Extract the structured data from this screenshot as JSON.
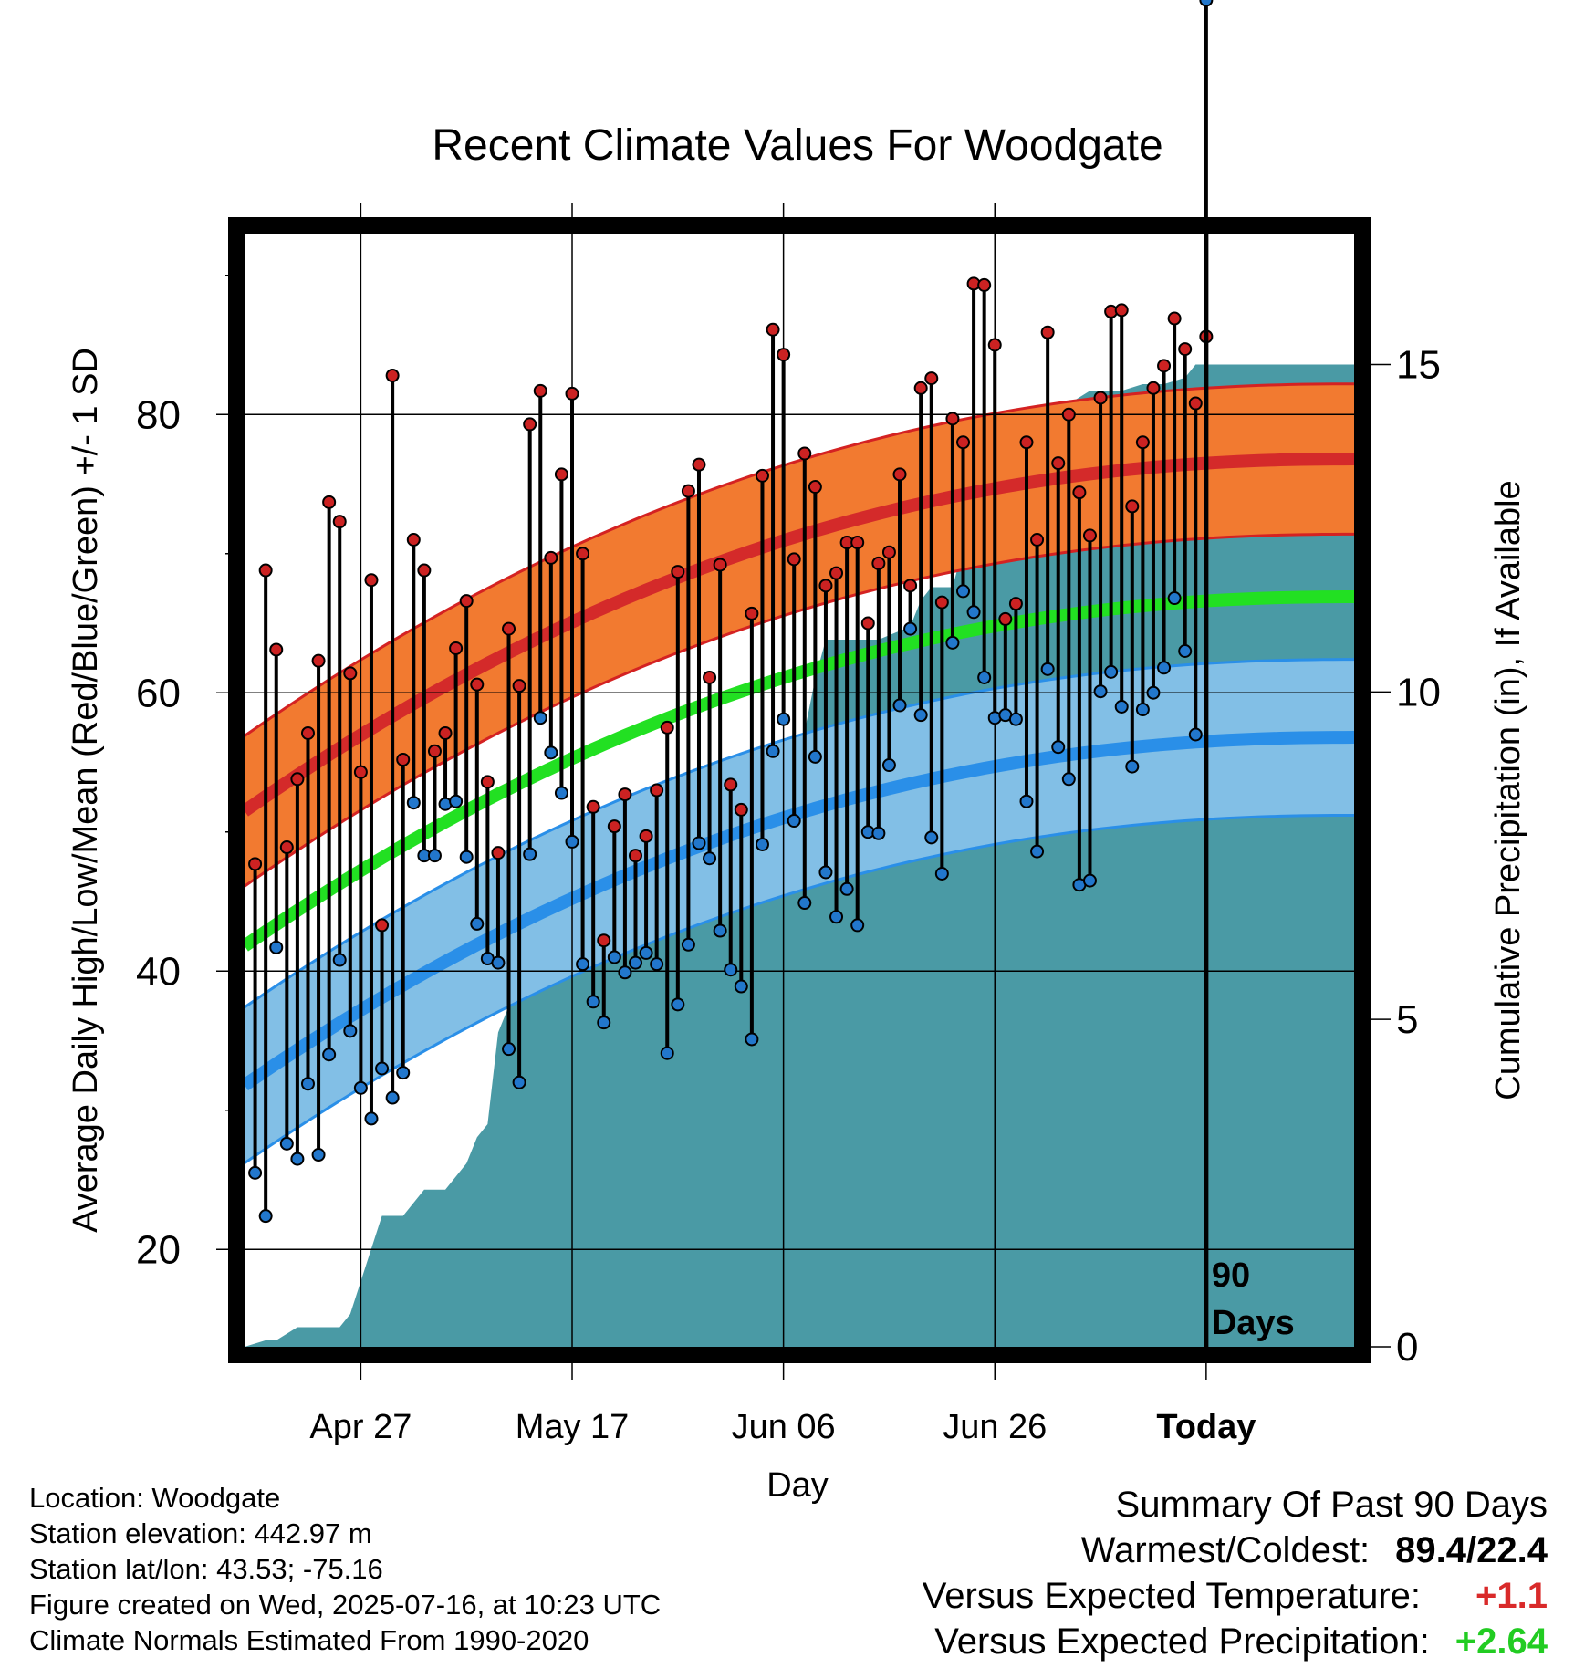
{
  "chart_data": {
    "type": "line",
    "title": "Recent Climate Values For Woodgate",
    "xlabel": "Day",
    "ylabel_left": "Average Daily High/Low/Mean (Red/Blue/Green) +/- 1 SD",
    "ylabel_right": "Cumulative Precipitation (in), If Available",
    "x_ticks": [
      "Apr 27",
      "May 17",
      "Jun 06",
      "Jun 26",
      "Today"
    ],
    "x_tick_days": [
      11,
      31,
      51,
      71,
      91
    ],
    "x_range": [
      0,
      105
    ],
    "ylim_left": [
      13,
      93
    ],
    "yticks_left": [
      20,
      40,
      60,
      80
    ],
    "ylim_right": [
      0,
      17
    ],
    "yticks_right": [
      0,
      5,
      10,
      15
    ],
    "grid": true,
    "today_label": "90\nDays",
    "normal_high": {
      "days": [
        0,
        105
      ],
      "mean": [
        51.5,
        76.8
      ],
      "sd": 5.4
    },
    "normal_mean": {
      "days": [
        0,
        105
      ],
      "mean": [
        41.8,
        66.9
      ]
    },
    "normal_low": {
      "days": [
        0,
        105
      ],
      "mean": [
        31.8,
        56.8
      ],
      "sd": 5.6
    },
    "series": [
      {
        "name": "High",
        "color": "#cc2222",
        "values": [
          47.7,
          68.8,
          63.1,
          48.9,
          53.8,
          57.1,
          62.3,
          73.7,
          72.3,
          61.4,
          54.3,
          68.1,
          43.3,
          82.8,
          55.2,
          71.0,
          68.8,
          55.8,
          57.1,
          63.2,
          66.6,
          60.6,
          53.6,
          48.5,
          64.6,
          60.5,
          79.3,
          81.7,
          69.7,
          75.7,
          81.5,
          70.0,
          51.8,
          42.2,
          50.4,
          52.7,
          48.3,
          49.7,
          53.0,
          57.5,
          68.7,
          74.5,
          76.4,
          61.1,
          69.2,
          53.4,
          51.6,
          65.7,
          75.6,
          86.1,
          84.3,
          69.6,
          77.2,
          74.8,
          67.7,
          68.6,
          70.8,
          70.8,
          65.0,
          69.3,
          70.1,
          75.7,
          67.7,
          81.9,
          82.6,
          66.5,
          79.7,
          78.0,
          89.4,
          89.3,
          85.0,
          65.3,
          66.4,
          78.0,
          71.0,
          85.9,
          76.5,
          80.0,
          74.4,
          71.3,
          81.2,
          87.4,
          87.5,
          73.4,
          78.0,
          81.9,
          83.5,
          86.9,
          84.7,
          80.8,
          85.6
        ]
      },
      {
        "name": "Low",
        "color": "#2277cc",
        "values": [
          25.5,
          22.4,
          41.7,
          27.6,
          26.5,
          31.9,
          26.8,
          34.0,
          40.8,
          35.7,
          31.6,
          29.4,
          33.0,
          30.9,
          32.7,
          52.1,
          48.3,
          48.3,
          52.0,
          52.2,
          48.2,
          43.4,
          40.9,
          40.6,
          34.4,
          32.0,
          48.4,
          58.2,
          55.7,
          52.8,
          49.3,
          40.5,
          37.8,
          36.3,
          41.0,
          39.9,
          40.6,
          41.3,
          40.5,
          34.1,
          37.6,
          41.9,
          49.2,
          48.1,
          42.9,
          40.1,
          38.9,
          35.1,
          49.1,
          55.8,
          58.1,
          50.8,
          44.9,
          55.4,
          47.1,
          43.9,
          45.9,
          43.3,
          50.0,
          49.9,
          54.8,
          59.1,
          64.6,
          58.4,
          49.6,
          47.0,
          63.6,
          67.3,
          65.8,
          61.1,
          58.2,
          58.4,
          58.1,
          52.2,
          48.6,
          61.7,
          56.1,
          53.8,
          46.2,
          46.5,
          60.1,
          61.5,
          59.0,
          54.7,
          58.8,
          60.0,
          61.8,
          66.8,
          63.0,
          57.0
        ]
      },
      {
        "name": "Cumulative Precipitation",
        "color": "#4a9aa5",
        "days": [
          0,
          2,
          3,
          5,
          7,
          9,
          10,
          11,
          13,
          15,
          17,
          19,
          21,
          22,
          23,
          24,
          25,
          26,
          28,
          30,
          31,
          32,
          33,
          34,
          36,
          37,
          39,
          40,
          42,
          44,
          46,
          48,
          50,
          51,
          52,
          53,
          54,
          55,
          56,
          57,
          60,
          63,
          64,
          65,
          67,
          68,
          69,
          70,
          73,
          74,
          75,
          76,
          77,
          78,
          80,
          83,
          85,
          87,
          89,
          90,
          92,
          105
        ],
        "values": [
          0,
          0.1,
          0.1,
          0.3,
          0.3,
          0.3,
          0.5,
          1.0,
          2.0,
          2.0,
          2.4,
          2.4,
          2.8,
          3.2,
          3.4,
          4.8,
          5.2,
          5.4,
          6.0,
          6.0,
          6.0,
          6.0,
          6.4,
          7.4,
          7.6,
          7.6,
          7.8,
          7.8,
          8.2,
          8.6,
          8.6,
          8.8,
          8.8,
          8.8,
          9.2,
          9.4,
          10.2,
          10.8,
          10.8,
          10.8,
          10.8,
          11.0,
          11.4,
          11.6,
          11.6,
          12.2,
          12.4,
          12.4,
          12.6,
          12.8,
          13.2,
          14.0,
          14.4,
          14.4,
          14.6,
          14.6,
          14.7,
          14.7,
          14.8,
          15.0,
          15.0,
          15.0
        ]
      }
    ]
  },
  "info": {
    "location": "Location: Woodgate",
    "elevation": "Station elevation: 442.97 m",
    "latlon": "Station lat/lon: 43.53; -75.16",
    "created": "Figure created on Wed, 2025-07-16, at 10:23 UTC",
    "normals": "Climate Normals Estimated From 1990-2020"
  },
  "summary": {
    "title": "Summary Of Past 90 Days",
    "warm_cold_label": "Warmest/Coldest:",
    "warm_cold_value": "89.4/22.4",
    "temp_label": "Versus Expected Temperature:",
    "temp_value": "+1.1",
    "precip_label": "Versus Expected Precipitation:",
    "precip_value": "+2.64"
  }
}
